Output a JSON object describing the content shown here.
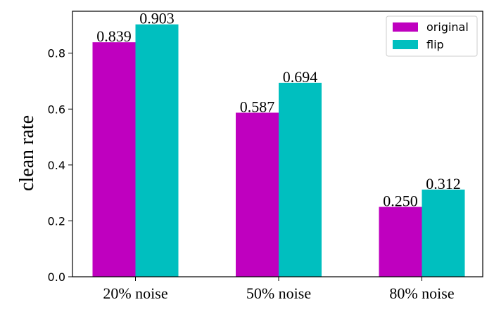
{
  "chart_data": {
    "type": "bar",
    "categories": [
      "20% noise",
      "50% noise",
      "80% noise"
    ],
    "series": [
      {
        "name": "original",
        "color": "#bf00bf",
        "values": [
          0.839,
          0.587,
          0.25
        ],
        "labels": [
          "0.839",
          "0.587",
          "0.250"
        ]
      },
      {
        "name": "flip",
        "color": "#00bfbf",
        "values": [
          0.903,
          0.694,
          0.312
        ],
        "labels": [
          "0.903",
          "0.694",
          "0.312"
        ]
      }
    ],
    "xlabel": "",
    "ylabel": "clean rate",
    "ylim": [
      0,
      0.95
    ],
    "yticks": [
      0.0,
      0.2,
      0.4,
      0.6,
      0.8
    ],
    "ytick_labels": [
      "0.0",
      "0.2",
      "0.4",
      "0.6",
      "0.8"
    ],
    "grid": false,
    "legend": "top-right"
  }
}
